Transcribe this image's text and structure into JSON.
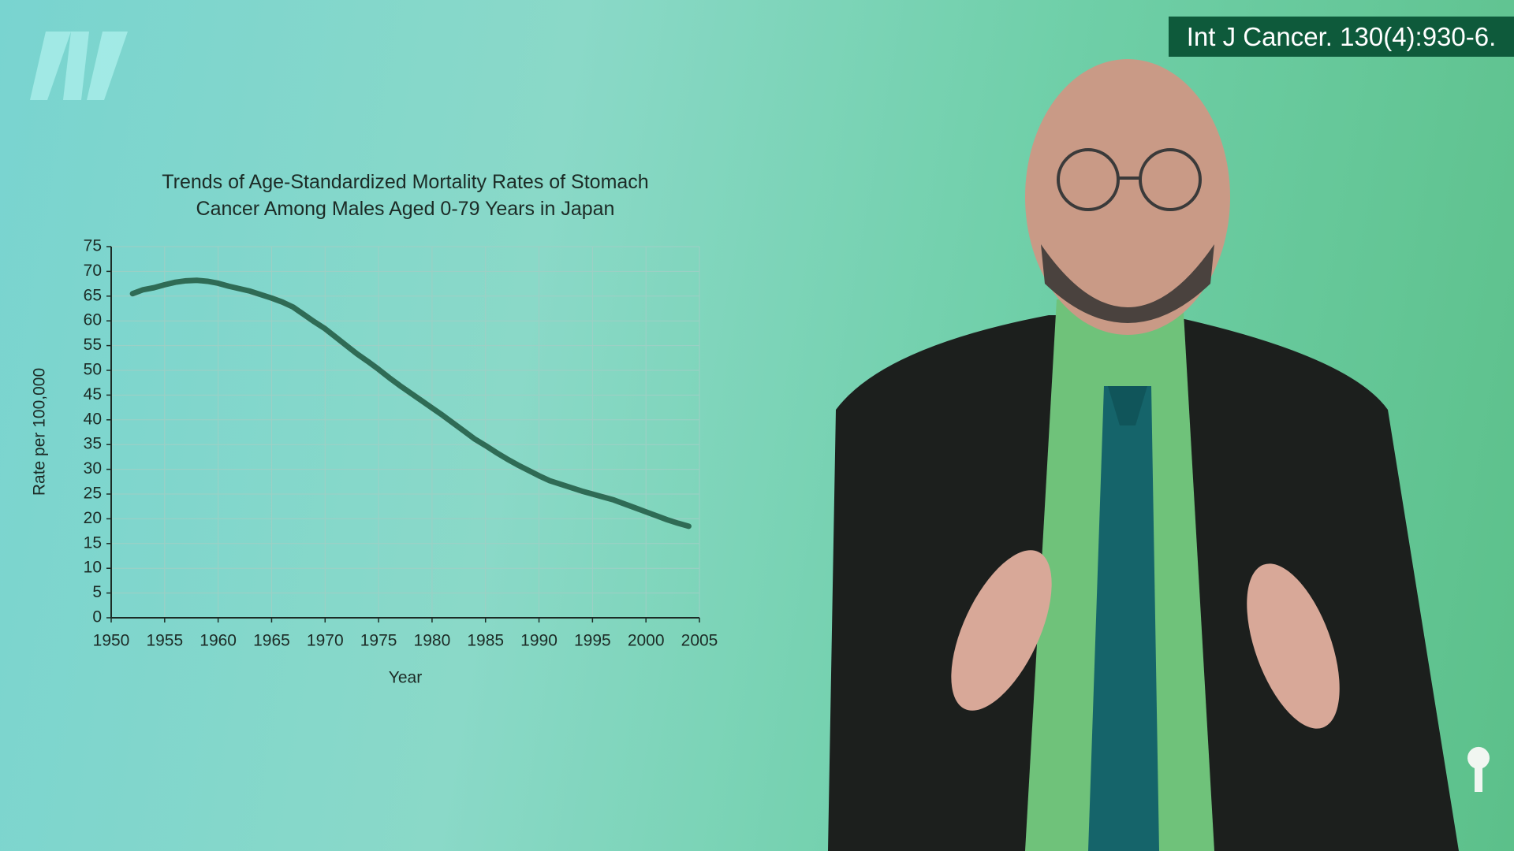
{
  "citation": "Int J Cancer. 130(4):930-6.",
  "chart_data": {
    "type": "line",
    "title": "Trends of Age-Standardized Mortality Rates of Stomach Cancer Among Males Aged 0-79 Years in Japan",
    "x_label": "Year",
    "y_label": "Rate per 100,000",
    "x": [
      1952,
      1953,
      1954,
      1955,
      1956,
      1957,
      1958,
      1959,
      1960,
      1961,
      1962,
      1963,
      1964,
      1965,
      1966,
      1967,
      1968,
      1969,
      1970,
      1971,
      1972,
      1973,
      1974,
      1975,
      1976,
      1977,
      1978,
      1979,
      1980,
      1981,
      1982,
      1983,
      1984,
      1985,
      1986,
      1987,
      1988,
      1989,
      1990,
      1991,
      1992,
      1993,
      1994,
      1995,
      1996,
      1997,
      1998,
      1999,
      2000,
      2001,
      2002,
      2003,
      2004
    ],
    "values": [
      65.5,
      66.3,
      66.7,
      67.3,
      67.8,
      68.1,
      68.2,
      68.0,
      67.6,
      67.0,
      66.5,
      66.0,
      65.3,
      64.6,
      63.8,
      62.8,
      61.3,
      59.8,
      58.4,
      56.7,
      55.0,
      53.3,
      51.8,
      50.2,
      48.5,
      46.9,
      45.4,
      43.9,
      42.4,
      40.9,
      39.3,
      37.7,
      36.1,
      34.8,
      33.4,
      32.1,
      30.9,
      29.8,
      28.7,
      27.7,
      27.0,
      26.3,
      25.6,
      25.0,
      24.4,
      23.8,
      23.0,
      22.2,
      21.4,
      20.6,
      19.8,
      19.1,
      18.5
    ],
    "color": "#2f6b55",
    "xlim": [
      1950,
      2005
    ],
    "xticks": [
      1950,
      1955,
      1960,
      1965,
      1970,
      1975,
      1980,
      1985,
      1990,
      1995,
      2000,
      2005
    ],
    "ylim": [
      0,
      75
    ],
    "yticks": [
      0,
      5,
      10,
      15,
      20,
      25,
      30,
      35,
      40,
      45,
      50,
      55,
      60,
      65,
      70,
      75
    ],
    "grid": true
  }
}
